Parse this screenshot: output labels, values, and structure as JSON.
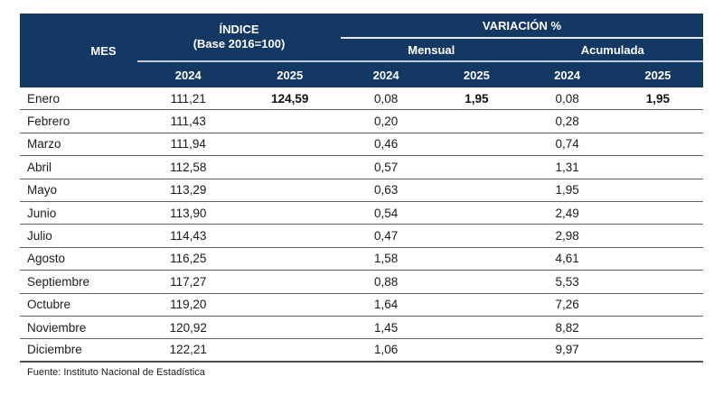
{
  "colors": {
    "header_background": "#133864",
    "header_text": "#ffffff",
    "row_separator": "#5f6468",
    "body_text": "#1a1a1a"
  },
  "table": {
    "header": {
      "mes": "MES",
      "indice_title": "ÍNDICE",
      "indice_subtitle": "(Base 2016=100)",
      "variacion_title": "VARIACIÓN %",
      "mensual": "Mensual",
      "acumulada": "Acumulada",
      "years": [
        "2024",
        "2025",
        "2024",
        "2025",
        "2024",
        "2025"
      ]
    },
    "rows": [
      {
        "mes": "Enero",
        "cells": [
          {
            "v": "111,21"
          },
          {
            "v": "124,59",
            "bold": true
          },
          {
            "v": "0,08"
          },
          {
            "v": "1,95",
            "bold": true
          },
          {
            "v": "0,08"
          },
          {
            "v": "1,95",
            "bold": true
          }
        ]
      },
      {
        "mes": "Febrero",
        "cells": [
          {
            "v": "111,43"
          },
          {
            "v": ""
          },
          {
            "v": "0,20"
          },
          {
            "v": ""
          },
          {
            "v": "0,28"
          },
          {
            "v": ""
          }
        ]
      },
      {
        "mes": "Marzo",
        "cells": [
          {
            "v": "111,94"
          },
          {
            "v": ""
          },
          {
            "v": "0,46"
          },
          {
            "v": ""
          },
          {
            "v": "0,74"
          },
          {
            "v": ""
          }
        ]
      },
      {
        "mes": "Abril",
        "cells": [
          {
            "v": "112,58"
          },
          {
            "v": ""
          },
          {
            "v": "0,57"
          },
          {
            "v": ""
          },
          {
            "v": "1,31"
          },
          {
            "v": ""
          }
        ]
      },
      {
        "mes": "Mayo",
        "cells": [
          {
            "v": "113,29"
          },
          {
            "v": ""
          },
          {
            "v": "0,63"
          },
          {
            "v": ""
          },
          {
            "v": "1,95"
          },
          {
            "v": ""
          }
        ]
      },
      {
        "mes": "Junio",
        "cells": [
          {
            "v": "113,90"
          },
          {
            "v": ""
          },
          {
            "v": "0,54"
          },
          {
            "v": ""
          },
          {
            "v": "2,49"
          },
          {
            "v": ""
          }
        ]
      },
      {
        "mes": "Julio",
        "cells": [
          {
            "v": "114,43"
          },
          {
            "v": ""
          },
          {
            "v": "0,47"
          },
          {
            "v": ""
          },
          {
            "v": "2,98"
          },
          {
            "v": ""
          }
        ]
      },
      {
        "mes": "Agosto",
        "cells": [
          {
            "v": "116,25"
          },
          {
            "v": ""
          },
          {
            "v": "1,58"
          },
          {
            "v": ""
          },
          {
            "v": "4,61"
          },
          {
            "v": ""
          }
        ]
      },
      {
        "mes": "Septiembre",
        "cells": [
          {
            "v": "117,27"
          },
          {
            "v": ""
          },
          {
            "v": "0,88"
          },
          {
            "v": ""
          },
          {
            "v": "5,53"
          },
          {
            "v": ""
          }
        ]
      },
      {
        "mes": "Octubre",
        "cells": [
          {
            "v": "119,20"
          },
          {
            "v": ""
          },
          {
            "v": "1,64"
          },
          {
            "v": ""
          },
          {
            "v": "7,26"
          },
          {
            "v": ""
          }
        ]
      },
      {
        "mes": "Noviembre",
        "cells": [
          {
            "v": "120,92"
          },
          {
            "v": ""
          },
          {
            "v": "1,45"
          },
          {
            "v": ""
          },
          {
            "v": "8,82"
          },
          {
            "v": ""
          }
        ]
      },
      {
        "mes": "Diciembre",
        "cells": [
          {
            "v": "122,21"
          },
          {
            "v": ""
          },
          {
            "v": "1,06"
          },
          {
            "v": ""
          },
          {
            "v": "9,97"
          },
          {
            "v": ""
          }
        ]
      }
    ],
    "footer": "Fuente: Instituto Nacional de Estadística"
  },
  "chart_data": {
    "type": "table",
    "title": "ÍNDICE (Base 2016=100) y VARIACIÓN %",
    "columns": [
      "MES",
      "ÍNDICE 2024",
      "ÍNDICE 2025",
      "Variación Mensual 2024",
      "Variación Mensual 2025",
      "Variación Acumulada 2024",
      "Variación Acumulada 2025"
    ],
    "rows": [
      [
        "Enero",
        111.21,
        124.59,
        0.08,
        1.95,
        0.08,
        1.95
      ],
      [
        "Febrero",
        111.43,
        null,
        0.2,
        null,
        0.28,
        null
      ],
      [
        "Marzo",
        111.94,
        null,
        0.46,
        null,
        0.74,
        null
      ],
      [
        "Abril",
        112.58,
        null,
        0.57,
        null,
        1.31,
        null
      ],
      [
        "Mayo",
        113.29,
        null,
        0.63,
        null,
        1.95,
        null
      ],
      [
        "Junio",
        113.9,
        null,
        0.54,
        null,
        2.49,
        null
      ],
      [
        "Julio",
        114.43,
        null,
        0.47,
        null,
        2.98,
        null
      ],
      [
        "Agosto",
        116.25,
        null,
        1.58,
        null,
        4.61,
        null
      ],
      [
        "Septiembre",
        117.27,
        null,
        0.88,
        null,
        5.53,
        null
      ],
      [
        "Octubre",
        119.2,
        null,
        1.64,
        null,
        7.26,
        null
      ],
      [
        "Noviembre",
        120.92,
        null,
        1.45,
        null,
        8.82,
        null
      ],
      [
        "Diciembre",
        122.21,
        null,
        1.06,
        null,
        9.97,
        null
      ]
    ],
    "source": "Fuente: Instituto Nacional de Estadística"
  }
}
